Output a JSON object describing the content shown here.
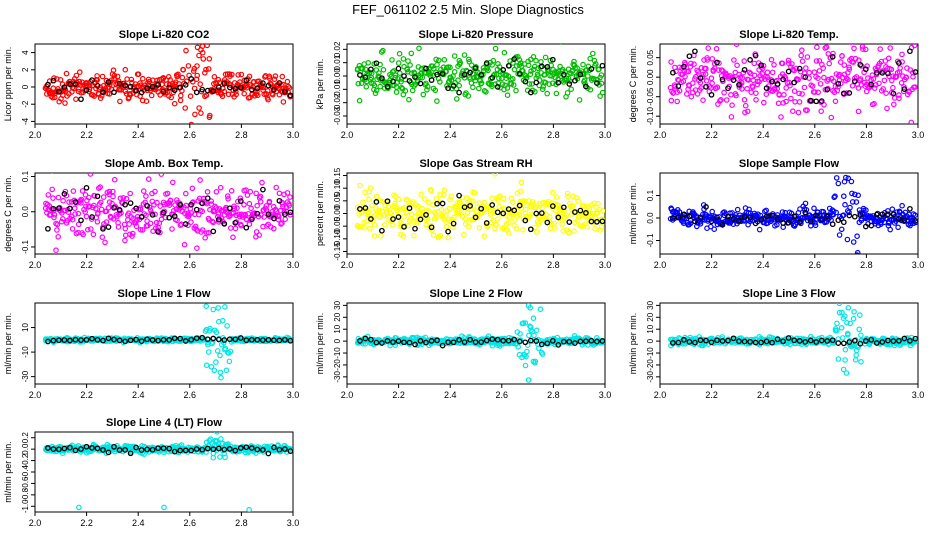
{
  "title": "FEF_061102  2.5 Min. Slope Diagnostics",
  "chart_data": [
    {
      "type": "scatter",
      "title": "Slope Li-820 CO2",
      "ylabel": "Licor ppm per min.",
      "xlim": [
        2.0,
        3.0
      ],
      "ylim": [
        -4.3,
        5.0
      ],
      "yticks": [
        -4,
        -2,
        0,
        2,
        4
      ],
      "xticks": [
        2.0,
        2.2,
        2.4,
        2.6,
        2.8,
        3.0
      ],
      "color": "#ff0000",
      "ref_color": "#000000",
      "sd": 0.75,
      "burst": {
        "x": 2.63,
        "value": 4.6,
        "spread": 4.0
      }
    },
    {
      "type": "scatter",
      "title": "Slope Li-820 Pressure",
      "ylabel": "kPa per min.",
      "xlim": [
        2.0,
        3.0
      ],
      "ylim": [
        -0.036,
        0.024
      ],
      "yticks": [
        -0.03,
        -0.02,
        -0.01,
        0.0,
        0.01,
        0.02
      ],
      "xticks": [
        2.0,
        2.2,
        2.4,
        2.6,
        2.8,
        3.0
      ],
      "color": "#00bb00",
      "ref_color": "#000000",
      "sd": 0.007,
      "burst": null
    },
    {
      "type": "scatter",
      "title": "Slope Li-820 Temp.",
      "ylabel": "degrees C per min.",
      "xlim": [
        2.0,
        3.0
      ],
      "ylim": [
        -0.12,
        0.085
      ],
      "yticks": [
        -0.1,
        -0.05,
        0.0,
        0.05
      ],
      "xticks": [
        2.0,
        2.2,
        2.4,
        2.6,
        2.8,
        3.0
      ],
      "color": "#ff00ff",
      "ref_color": "#000000",
      "sd": 0.04,
      "burst": null
    },
    {
      "type": "scatter",
      "title": "Slope Amb. Box Temp.",
      "ylabel": "degrees C per min.",
      "xlim": [
        2.0,
        3.0
      ],
      "ylim": [
        -0.12,
        0.11
      ],
      "yticks": [
        -0.1,
        0.0,
        0.1
      ],
      "xticks": [
        2.0,
        2.2,
        2.4,
        2.6,
        2.8,
        3.0
      ],
      "color": "#ff00ff",
      "ref_color": "#000000",
      "sd": 0.04,
      "burst": null
    },
    {
      "type": "scatter",
      "title": "Slope Gas Stream RH",
      "ylabel": "percent per min.",
      "xlim": [
        2.0,
        3.0
      ],
      "ylim": [
        -0.16,
        0.16
      ],
      "yticks": [
        -0.15,
        -0.1,
        -0.05,
        0.0,
        0.05,
        0.1,
        0.15
      ],
      "xticks": [
        2.0,
        2.2,
        2.4,
        2.6,
        2.8,
        3.0
      ],
      "color": "#ffff00",
      "ref_color": "#000000",
      "sd": 0.04,
      "burst": null
    },
    {
      "type": "scatter",
      "title": "Slope Sample Flow",
      "ylabel": "ml/min per min.",
      "xlim": [
        2.0,
        3.0
      ],
      "ylim": [
        -0.16,
        0.2
      ],
      "yticks": [
        -0.1,
        0.0,
        0.1
      ],
      "xticks": [
        2.0,
        2.2,
        2.4,
        2.6,
        2.8,
        3.0
      ],
      "color": "#0000ff",
      "ref_color": "#000000",
      "sd": 0.02,
      "burst": {
        "x": 2.72,
        "value": 0.18,
        "spread": 0.13
      }
    },
    {
      "type": "scatter",
      "title": "Slope Line 1 Flow",
      "ylabel": "ml/min per min.",
      "xlim": [
        2.0,
        3.0
      ],
      "ylim": [
        -36,
        30
      ],
      "yticks": [
        -30,
        -10,
        10
      ],
      "xticks": [
        2.0,
        2.2,
        2.4,
        2.6,
        2.8,
        3.0
      ],
      "color": "#00e5e5",
      "ref_color": "#000000",
      "sd": 0.8,
      "burst": {
        "x": 2.71,
        "value": 26,
        "spread": 18
      }
    },
    {
      "type": "scatter",
      "title": "Slope Line 2 Flow",
      "ylabel": "ml/min per min.",
      "xlim": [
        2.0,
        3.0
      ],
      "ylim": [
        -36,
        32
      ],
      "yticks": [
        -30,
        -20,
        -10,
        0,
        10,
        20,
        30
      ],
      "xticks": [
        2.0,
        2.2,
        2.4,
        2.6,
        2.8,
        3.0
      ],
      "color": "#00e5e5",
      "ref_color": "#000000",
      "sd": 1.5,
      "burst": {
        "x": 2.71,
        "value": 28,
        "spread": 16
      }
    },
    {
      "type": "scatter",
      "title": "Slope Line 3 Flow",
      "ylabel": "ml/min per min.",
      "xlim": [
        2.0,
        3.0
      ],
      "ylim": [
        -36,
        32
      ],
      "yticks": [
        -30,
        -20,
        -10,
        0,
        10,
        20,
        30
      ],
      "xticks": [
        2.0,
        2.2,
        2.4,
        2.6,
        2.8,
        3.0
      ],
      "color": "#00e5e5",
      "ref_color": "#000000",
      "sd": 1.5,
      "burst": {
        "x": 2.73,
        "value": 28,
        "spread": 14
      }
    },
    {
      "type": "scatter",
      "title": "Slope Line 4 (LT) Flow",
      "ylabel": "ml/min per min.",
      "xlim": [
        2.0,
        3.0
      ],
      "ylim": [
        -1.1,
        0.3
      ],
      "yticks": [
        -1.0,
        -0.8,
        -0.6,
        -0.4,
        -0.2,
        0.0,
        0.2
      ],
      "xticks": [
        2.0,
        2.2,
        2.4,
        2.6,
        2.8,
        3.0
      ],
      "color": "#00e5e5",
      "ref_color": "#000000",
      "sd": 0.03,
      "burst": {
        "x": 2.7,
        "value": 0.15,
        "spread": 0.1
      },
      "outliers": [
        {
          "x": 2.17,
          "value": -1.02
        },
        {
          "x": 2.5,
          "value": -1.02
        },
        {
          "x": 2.83,
          "value": -1.06
        }
      ]
    }
  ]
}
